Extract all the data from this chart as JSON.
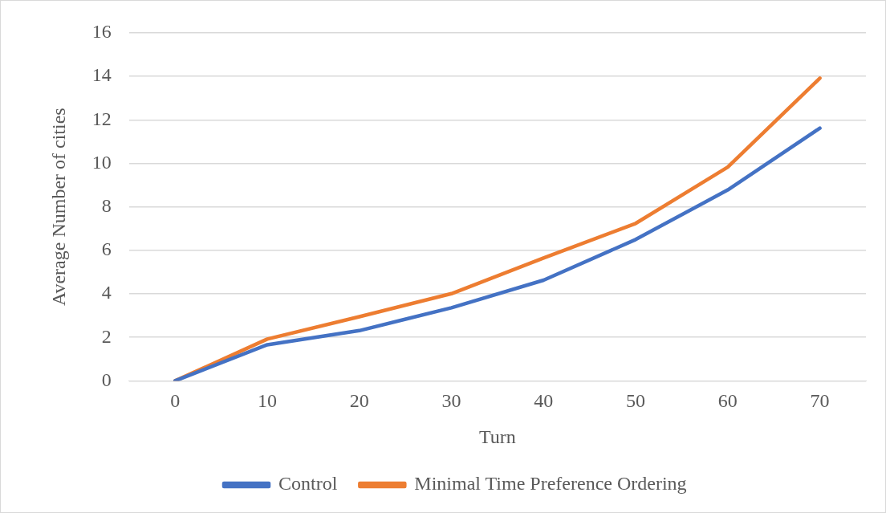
{
  "chart_data": {
    "type": "line",
    "xlabel": "Turn",
    "ylabel": "Average Number of cities",
    "categories": [
      "0",
      "10",
      "20",
      "30",
      "40",
      "50",
      "60",
      "70"
    ],
    "series": [
      {
        "name": "Control",
        "color": "#4472c4",
        "values": [
          0,
          1.66,
          2.31,
          3.36,
          4.63,
          6.5,
          8.78,
          11.62
        ]
      },
      {
        "name": "Minimal Time Preference Ordering",
        "color": "#ed7d31",
        "values": [
          0,
          1.92,
          2.95,
          4.01,
          5.65,
          7.24,
          9.83,
          13.92
        ]
      }
    ],
    "ylim": [
      0,
      16
    ],
    "yticks": [
      0,
      2,
      4,
      6,
      8,
      10,
      12,
      14,
      16
    ],
    "grid": "y",
    "legend": "bottom",
    "marker": "none",
    "line_style": "solid"
  }
}
